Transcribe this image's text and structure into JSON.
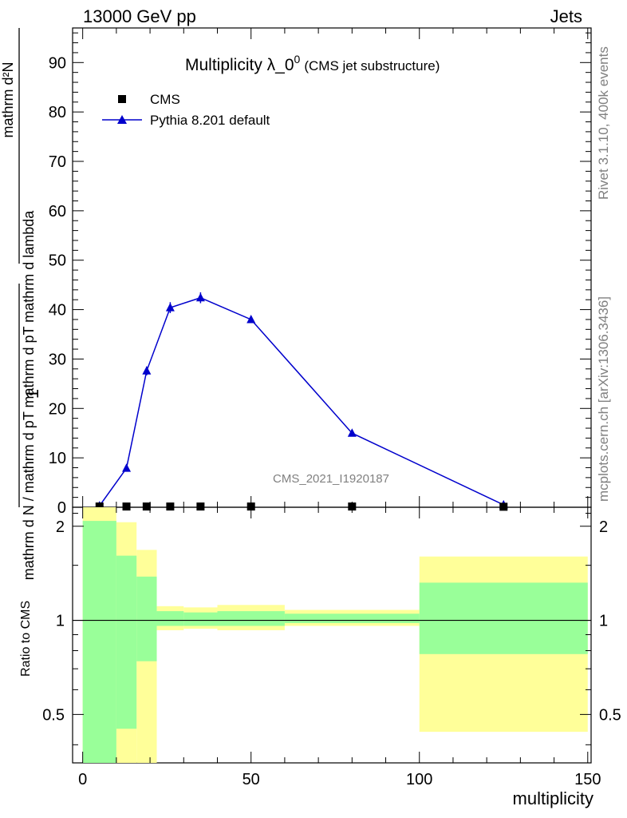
{
  "header": {
    "left": "13000 GeV pp",
    "right": "Jets"
  },
  "side_texts": {
    "rivet": "Rivet 3.1.10,  400k events",
    "mcplots": "mcplots.cern.ch [arXiv:1306.3436]"
  },
  "chart_data": [
    {
      "type": "line",
      "title_main": "Multiplicity λ_0",
      "title_sup": "0",
      "title_sub": "(CMS jet substructure)",
      "analysis_label": "CMS_2021_I1920187",
      "ylabel_numerator": "mathrm d²N",
      "ylabel_fraction_one": "1",
      "ylabel_denominator": "mathrm d N / mathrm d pT mathrm d pT mathrm d lambda",
      "xlabel": "multiplicity",
      "xlim": [
        -3,
        151
      ],
      "ylim": [
        0,
        97
      ],
      "y_ticks": [
        0,
        10,
        20,
        30,
        40,
        50,
        60,
        70,
        80,
        90
      ],
      "legend_position": "top-left",
      "series": [
        {
          "name": "CMS",
          "marker": "square",
          "color": "#000000",
          "x": [
            5,
            13,
            19,
            26,
            35,
            50,
            80,
            125
          ],
          "y": [
            0.15,
            0.15,
            0.15,
            0.15,
            0.15,
            0.15,
            0.15,
            0.1
          ]
        },
        {
          "name": "Pythia 8.201 default",
          "marker": "triangle",
          "color": "#0000cc",
          "x": [
            5,
            13,
            19,
            26,
            35,
            50,
            80,
            125
          ],
          "y": [
            0.3,
            7.9,
            27.6,
            40.4,
            42.4,
            38.0,
            15.0,
            0.5
          ],
          "yerr": [
            0.2,
            0.6,
            0.9,
            1.1,
            1.1,
            0.7,
            0.4,
            0.1
          ]
        }
      ]
    },
    {
      "type": "area",
      "ylabel": "Ratio to CMS",
      "xlabel": "multiplicity",
      "xlim": [
        -3,
        151
      ],
      "ylim": [
        0.35,
        2.3
      ],
      "x_ticks": [
        0,
        50,
        100,
        150
      ],
      "y_ticks": [
        0.5,
        1,
        2
      ],
      "y_tick_labels": [
        "0.5",
        "1",
        "2"
      ],
      "reference_line": 1,
      "band_colors": {
        "inner": "#99ff99",
        "outer": "#ffff99"
      },
      "bins": [
        {
          "lo": 0,
          "hi": 10,
          "inner": [
            0.35,
            2.08
          ],
          "outer": [
            0.35,
            2.3
          ]
        },
        {
          "lo": 10,
          "hi": 16,
          "inner": [
            0.45,
            1.61
          ],
          "outer": [
            0.35,
            2.06
          ]
        },
        {
          "lo": 16,
          "hi": 22,
          "inner": [
            0.74,
            1.38
          ],
          "outer": [
            0.35,
            1.68
          ]
        },
        {
          "lo": 22,
          "hi": 30,
          "inner": [
            0.96,
            1.07
          ],
          "outer": [
            0.93,
            1.11
          ]
        },
        {
          "lo": 30,
          "hi": 40,
          "inner": [
            0.96,
            1.06
          ],
          "outer": [
            0.94,
            1.1
          ]
        },
        {
          "lo": 40,
          "hi": 60,
          "inner": [
            0.96,
            1.07
          ],
          "outer": [
            0.93,
            1.12
          ]
        },
        {
          "lo": 60,
          "hi": 100,
          "inner": [
            0.98,
            1.05
          ],
          "outer": [
            0.96,
            1.08
          ]
        },
        {
          "lo": 100,
          "hi": 150,
          "inner": [
            0.78,
            1.32
          ],
          "outer": [
            0.44,
            1.6
          ]
        }
      ]
    }
  ]
}
